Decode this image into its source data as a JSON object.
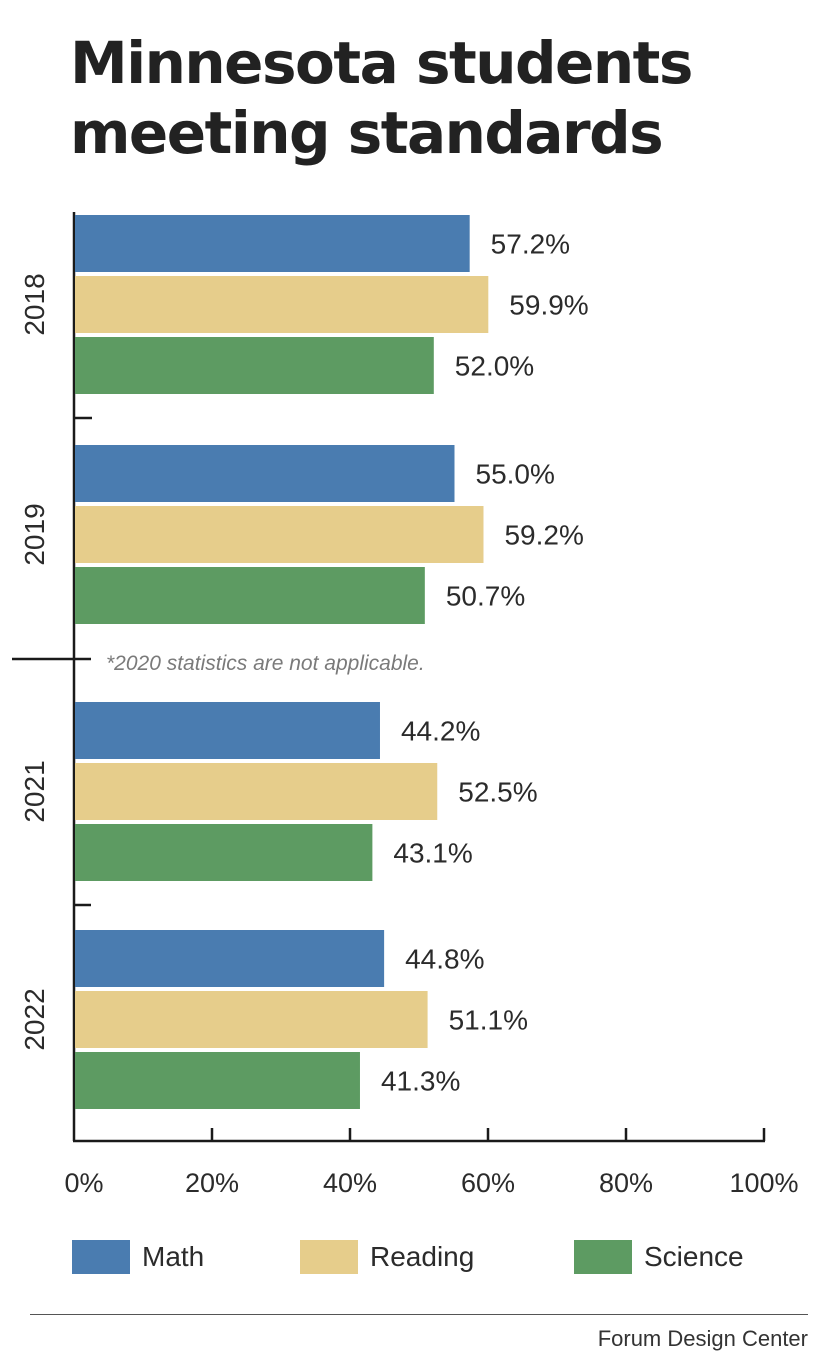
{
  "title_lines": [
    "Minnesota students",
    "meeting standards"
  ],
  "note": "*2020 statistics are not applicable.",
  "source": "Forum Design Center",
  "colors": {
    "math": "#4a7cb0",
    "reading": "#e6cd8b",
    "science": "#5d9b62"
  },
  "chart_data": {
    "type": "bar",
    "orientation": "horizontal",
    "title": "Minnesota students meeting standards",
    "categories": [
      "2018",
      "2019",
      "2021",
      "2022"
    ],
    "series": [
      {
        "name": "Math",
        "color": "#4a7cb0",
        "values": [
          57.2,
          55.0,
          44.2,
          44.8
        ],
        "labels": [
          "57.2%",
          "55.0%",
          "44.2%",
          "44.8%"
        ]
      },
      {
        "name": "Reading",
        "color": "#e6cd8b",
        "values": [
          59.9,
          59.2,
          52.5,
          51.1
        ],
        "labels": [
          "59.9%",
          "59.2%",
          "52.5%",
          "51.1%"
        ]
      },
      {
        "name": "Science",
        "color": "#5d9b62",
        "values": [
          52.0,
          50.7,
          43.1,
          41.3
        ],
        "labels": [
          "52.0%",
          "50.7%",
          "43.1%",
          "41.3%"
        ]
      }
    ],
    "xlim": [
      0,
      100
    ],
    "xticks": [
      "0%",
      "20%",
      "40%",
      "60%",
      "80%",
      "100%"
    ],
    "grid": false,
    "legend_position": "bottom"
  }
}
